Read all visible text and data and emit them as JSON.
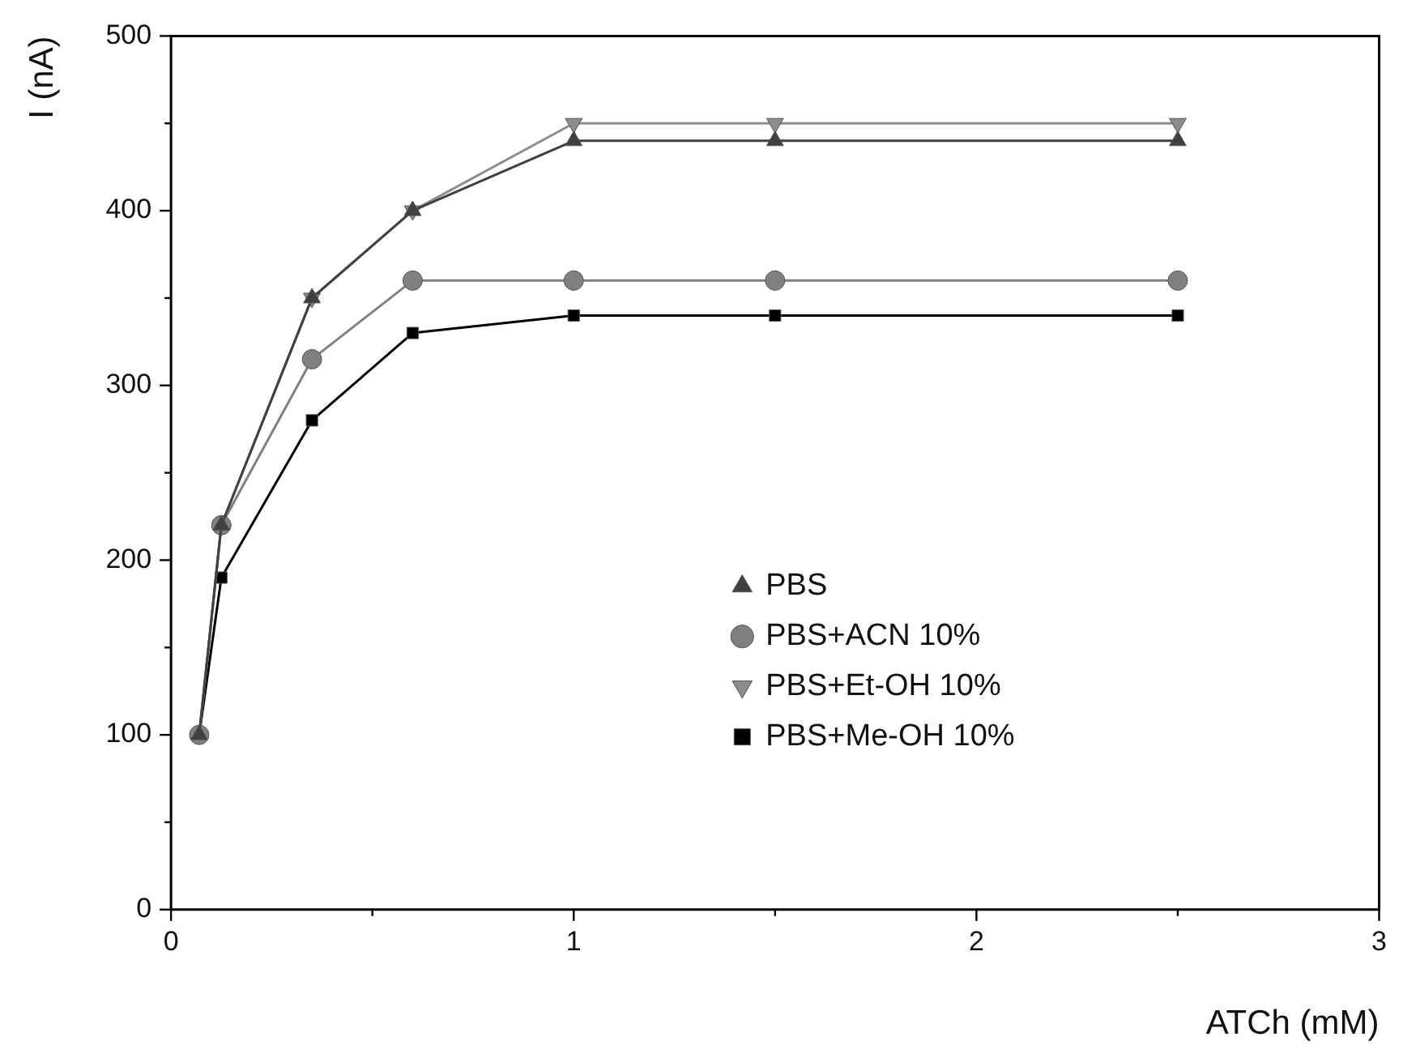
{
  "chart_data": {
    "type": "line",
    "xlabel": "ATCh (mM)",
    "ylabel": "I (nA)",
    "x": [
      0.07,
      0.125,
      0.35,
      0.6,
      1,
      1.5,
      2.5
    ],
    "xlim": [
      0,
      3
    ],
    "xticks": [
      0,
      1,
      2,
      3
    ],
    "ylim": [
      0,
      500
    ],
    "yticks": [
      0,
      100,
      200,
      300,
      400,
      500
    ],
    "grid": false,
    "legend": "bottom right",
    "series": [
      {
        "name": "PBS",
        "color": "#404040",
        "marker": "triangle",
        "values": [
          100,
          220,
          350,
          400,
          440,
          440,
          440
        ]
      },
      {
        "name": "PBS+ACN 10%",
        "color": "#808080",
        "marker": "circle",
        "values": [
          100,
          220,
          315,
          360,
          360,
          360,
          360
        ]
      },
      {
        "name": "PBS+Et-OH 10%",
        "color": "#8c8c8c",
        "marker": "triangle-down",
        "values": [
          100,
          220,
          350,
          400,
          450,
          450,
          450
        ]
      },
      {
        "name": "PBS+Me-OH 10%",
        "color": "#000000",
        "marker": "square",
        "values": [
          100,
          190,
          280,
          330,
          340,
          340,
          340
        ]
      }
    ]
  }
}
